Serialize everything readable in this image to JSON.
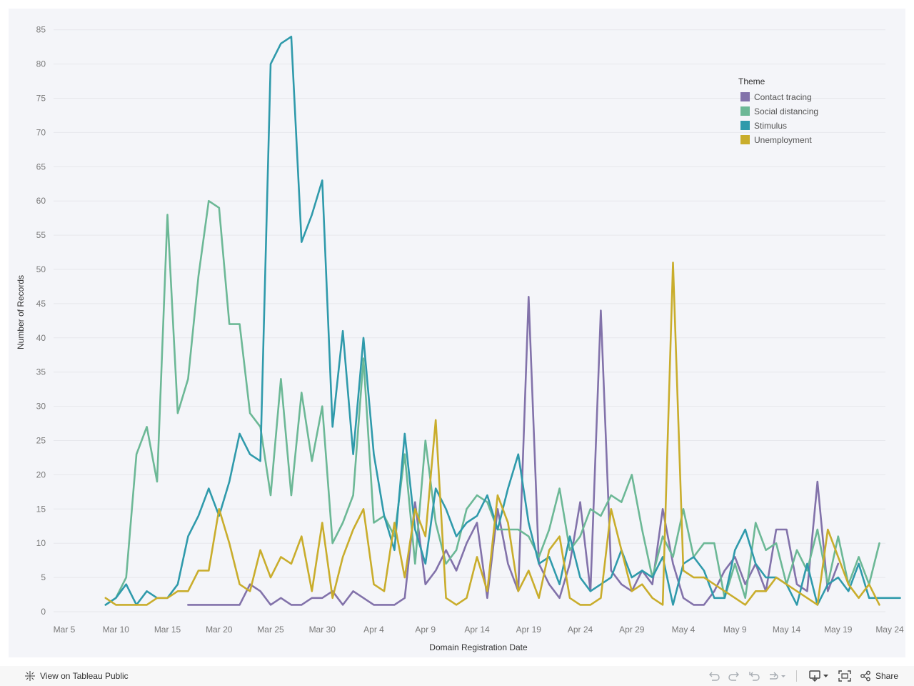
{
  "chart_data": {
    "type": "line",
    "title": "",
    "xlabel": "Domain Registration Date",
    "ylabel": "Number of Records",
    "x_start": "Mar 5",
    "x_end": "May 24",
    "ylim": [
      0,
      87
    ],
    "y_ticks": [
      0,
      5,
      10,
      15,
      20,
      25,
      30,
      35,
      40,
      45,
      50,
      55,
      60,
      65,
      70,
      75,
      80,
      85
    ],
    "x_ticks": [
      "Mar 5",
      "Mar 10",
      "Mar 15",
      "Mar 20",
      "Mar 25",
      "Mar 30",
      "Apr 4",
      "Apr 9",
      "Apr 14",
      "Apr 19",
      "Apr 24",
      "Apr 29",
      "May 4",
      "May 9",
      "May 14",
      "May 19",
      "May 24"
    ],
    "grid": true,
    "legend": {
      "title": "Theme",
      "placement": "top-right"
    },
    "series": [
      {
        "name": "Contact tracing",
        "color": "#8272aa",
        "start": "Mar 17",
        "values": [
          1,
          1,
          1,
          1,
          1,
          1,
          4,
          3,
          1,
          2,
          1,
          1,
          2,
          2,
          3,
          1,
          3,
          2,
          1,
          1,
          1,
          2,
          16,
          4,
          6,
          9,
          6,
          10,
          13,
          2,
          15,
          7,
          3,
          46,
          7,
          4,
          2,
          7,
          16,
          3,
          44,
          6,
          4,
          3,
          6,
          4,
          15,
          7,
          2,
          1,
          1,
          3,
          6,
          8,
          4,
          7,
          3,
          12,
          12,
          4,
          3,
          19,
          3,
          7
        ]
      },
      {
        "name": "Social distancing",
        "color": "#6cb896",
        "start": "Mar 9",
        "values": [
          1,
          2,
          5,
          23,
          27,
          19,
          58,
          29,
          34,
          49,
          60,
          59,
          42,
          42,
          29,
          27,
          17,
          34,
          17,
          32,
          22,
          30,
          10,
          13,
          17,
          37,
          13,
          14,
          11,
          23,
          7,
          25,
          13,
          7,
          9,
          15,
          17,
          16,
          12,
          12,
          12,
          11,
          8,
          12,
          18,
          9,
          11,
          15,
          14,
          17,
          16,
          20,
          12,
          5,
          11,
          8,
          15,
          8,
          10,
          10,
          2,
          7,
          2,
          13,
          9,
          10,
          4,
          9,
          6,
          12,
          4,
          11,
          4,
          8,
          4,
          10
        ]
      },
      {
        "name": "Stimulus",
        "color": "#2f9aab",
        "start": "Mar 9",
        "values": [
          1,
          2,
          4,
          1,
          3,
          2,
          2,
          4,
          11,
          14,
          18,
          14,
          19,
          26,
          23,
          22,
          80,
          83,
          84,
          54,
          58,
          63,
          27,
          41,
          23,
          40,
          23,
          14,
          9,
          26,
          12,
          7,
          18,
          15,
          11,
          13,
          14,
          17,
          12,
          18,
          23,
          13,
          7,
          8,
          4,
          11,
          5,
          3,
          4,
          5,
          9,
          5,
          6,
          5,
          8,
          1,
          7,
          8,
          6,
          2,
          2,
          9,
          12,
          7,
          5,
          5,
          4,
          1,
          7,
          1,
          4,
          5,
          3,
          7,
          2,
          2,
          2,
          2
        ]
      },
      {
        "name": "Unemployment",
        "color": "#c9ad2c",
        "start": "Mar 9",
        "values": [
          2,
          1,
          1,
          1,
          1,
          2,
          2,
          3,
          3,
          6,
          6,
          15,
          10,
          4,
          3,
          9,
          5,
          8,
          7,
          11,
          3,
          13,
          2,
          8,
          12,
          15,
          4,
          3,
          13,
          5,
          15,
          11,
          28,
          2,
          1,
          2,
          8,
          3,
          17,
          13,
          3,
          6,
          2,
          9,
          11,
          2,
          1,
          1,
          2,
          15,
          9,
          3,
          4,
          2,
          1,
          51,
          6,
          5,
          5,
          4,
          3,
          2,
          1,
          3,
          3,
          5,
          4,
          3,
          2,
          1,
          12,
          8,
          4,
          2,
          4,
          1
        ]
      }
    ]
  },
  "toolbar": {
    "view_label": "View on Tableau Public",
    "share_label": "Share",
    "view_icon": "tableau-logo-icon",
    "undo_icon": "undo-icon",
    "redo_icon": "redo-icon",
    "revert_icon": "revert-icon",
    "refresh_icon": "refresh-icon",
    "download_icon": "download-icon",
    "fullscreen_icon": "fullscreen-icon",
    "share_icon": "share-icon"
  }
}
